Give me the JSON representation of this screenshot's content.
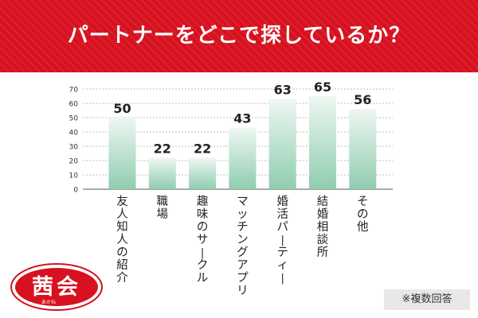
{
  "title": "パートナーをどこで探しているか？",
  "colors": {
    "banner": "#d7111f",
    "bar_top": "#eef7f2",
    "bar_bottom": "#8fcdb0",
    "grid": "#bdbdbd",
    "text": "#222222"
  },
  "chart_data": {
    "type": "bar",
    "title": "",
    "xlabel": "",
    "ylabel": "",
    "categories": [
      "友人知人の紹介",
      "職場",
      "趣味のサークル",
      "マッチングアプリ",
      "婚活パーティー",
      "結婚相談所",
      "その他"
    ],
    "values": [
      50,
      22,
      22,
      43,
      63,
      65,
      56
    ],
    "ylim": [
      0,
      70
    ],
    "yticks": [
      0,
      10,
      20,
      30,
      40,
      50,
      60,
      70
    ],
    "grid": true,
    "legend": "none"
  },
  "logo": {
    "main": "茜会",
    "reading": "あかね"
  },
  "note": "※複数回答"
}
